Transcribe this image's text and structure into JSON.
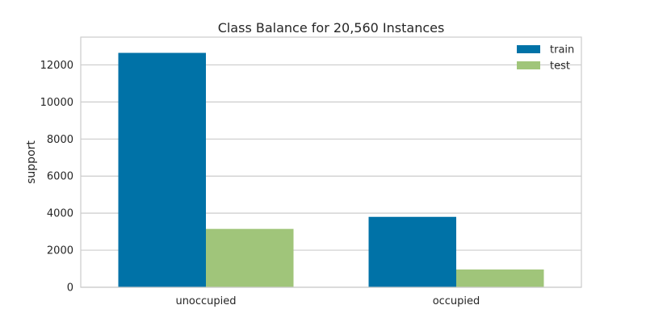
{
  "chart_data": {
    "type": "bar",
    "title": "Class Balance for 20,560 Instances",
    "xlabel": "",
    "ylabel": "support",
    "categories": [
      "unoccupied",
      "occupied"
    ],
    "series": [
      {
        "name": "train",
        "values": [
          12650,
          3800
        ],
        "color": "#0072A7"
      },
      {
        "name": "test",
        "values": [
          3150,
          960
        ],
        "color": "#A0C57A"
      }
    ],
    "ylim": [
      0,
      13500
    ],
    "yticks": [
      0,
      2000,
      4000,
      6000,
      8000,
      10000,
      12000
    ],
    "grid": true,
    "legend_position": "top-right"
  }
}
